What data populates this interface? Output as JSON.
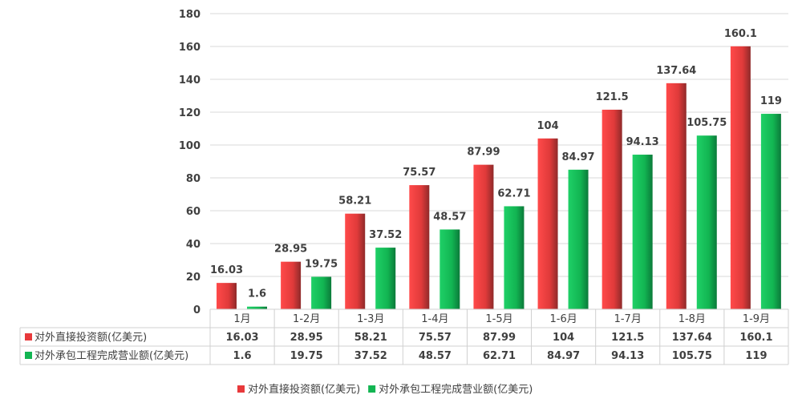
{
  "chart_data": {
    "type": "bar",
    "title": "",
    "categories": [
      "1月",
      "1-2月",
      "1-3月",
      "1-4月",
      "1-5月",
      "1-6月",
      "1-7月",
      "1-8月",
      "1-9月"
    ],
    "series": [
      {
        "name": "对外直接投资额(亿美元)",
        "color": "#e8393b",
        "values": [
          16.03,
          28.95,
          58.21,
          75.57,
          87.99,
          104,
          121.5,
          137.64,
          160.1
        ]
      },
      {
        "name": "对外承包工程完成营业额(亿美元)",
        "color": "#12b552",
        "values": [
          1.6,
          19.75,
          37.52,
          48.57,
          62.71,
          84.97,
          94.13,
          105.75,
          119
        ]
      }
    ],
    "ylim": [
      0,
      180
    ],
    "yticks": [
      0,
      20,
      40,
      60,
      80,
      100,
      120,
      140,
      160,
      180
    ],
    "grid": true,
    "data_table": true,
    "legend": "bottom"
  }
}
